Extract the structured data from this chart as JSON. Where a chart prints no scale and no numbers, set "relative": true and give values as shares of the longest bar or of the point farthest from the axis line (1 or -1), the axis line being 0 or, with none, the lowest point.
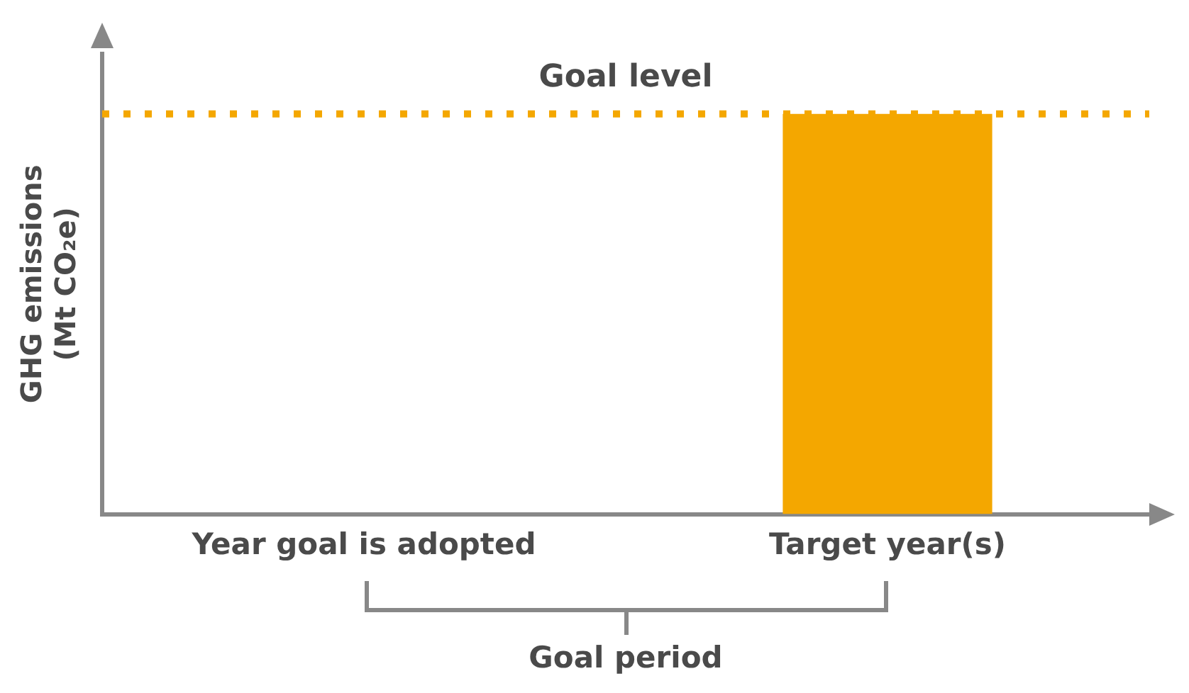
{
  "chart_data": {
    "type": "bar",
    "ylabel": "GHG emissions\n(Mt CO₂e)",
    "categories": [
      "Year goal is adopted",
      "Target year(s)"
    ],
    "values": [
      null,
      1
    ],
    "color": "#f4a700",
    "relative": true,
    "grid": false,
    "legend": false,
    "ref_lines": [
      {
        "axis": "y",
        "value": 1,
        "label": "Goal level",
        "color": "#f4a700",
        "line_style": "dotted"
      }
    ],
    "annotations": [
      "Goal period"
    ]
  }
}
